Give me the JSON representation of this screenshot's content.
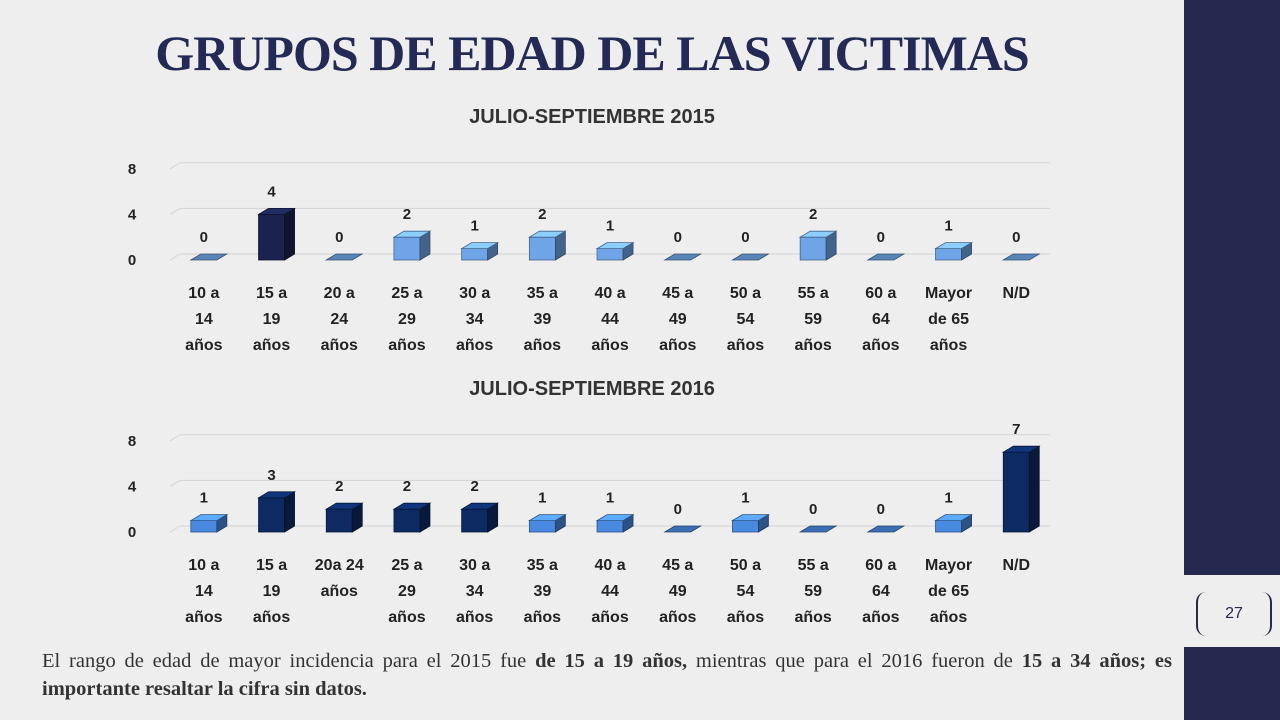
{
  "slide": {
    "title": "GRUPOS DE EDAD DE LAS VICTIMAS",
    "page_number": "27",
    "footnote": {
      "p1": "El rango de edad de mayor incidencia para el 2015 fue ",
      "b1": "de 15 a 19 años,",
      "p2": " mientras que para el 2016 fueron de ",
      "b2": "15 a 34 años; es importante resaltar la cifra sin datos."
    }
  },
  "colors": {
    "accent_band": "#26294f",
    "light_bar": "#6fa5e6",
    "dark_bar_2015": "#1b2250",
    "dark_bar_2016": "#0d2a62",
    "mid_bar_2016": "#4a89e0"
  },
  "chart_data": [
    {
      "type": "bar",
      "title": "JULIO-SEPTIEMBRE 2015",
      "categories": [
        [
          "10 a",
          "14",
          "años"
        ],
        [
          "15 a",
          "19",
          "años"
        ],
        [
          "20 a",
          "24",
          "años"
        ],
        [
          "25 a",
          "29",
          "años"
        ],
        [
          "30 a",
          "34",
          "años"
        ],
        [
          "35 a",
          "39",
          "años"
        ],
        [
          "40 a",
          "44",
          "años"
        ],
        [
          "45 a",
          "49",
          "años"
        ],
        [
          "50 a",
          "54",
          "años"
        ],
        [
          "55 a",
          "59",
          "años"
        ],
        [
          "60 a",
          "64",
          "años"
        ],
        [
          "Mayor",
          "de 65",
          "años"
        ],
        [
          "N/D"
        ]
      ],
      "values": [
        0,
        4,
        0,
        2,
        1,
        2,
        1,
        0,
        0,
        2,
        0,
        1,
        0
      ],
      "ylim": [
        0,
        8
      ],
      "yticks": [
        0,
        4,
        8
      ],
      "grid": true,
      "style": "3d-column"
    },
    {
      "type": "bar",
      "title": "JULIO-SEPTIEMBRE 2016",
      "categories": [
        [
          "10 a",
          "14",
          "años"
        ],
        [
          "15 a",
          "19",
          "años"
        ],
        [
          "20a 24",
          "años"
        ],
        [
          "25 a",
          "29",
          "años"
        ],
        [
          "30 a",
          "34",
          "años"
        ],
        [
          "35 a",
          "39",
          "años"
        ],
        [
          "40 a",
          "44",
          "años"
        ],
        [
          "45 a",
          "49",
          "años"
        ],
        [
          "50 a",
          "54",
          "años"
        ],
        [
          "55 a",
          "59",
          "años"
        ],
        [
          "60 a",
          "64",
          "años"
        ],
        [
          "Mayor",
          "de 65",
          "años"
        ],
        [
          "N/D"
        ]
      ],
      "values": [
        1,
        3,
        2,
        2,
        2,
        1,
        1,
        0,
        1,
        0,
        0,
        1,
        7
      ],
      "ylim": [
        0,
        8
      ],
      "yticks": [
        0,
        4,
        8
      ],
      "grid": true,
      "style": "3d-column"
    }
  ]
}
